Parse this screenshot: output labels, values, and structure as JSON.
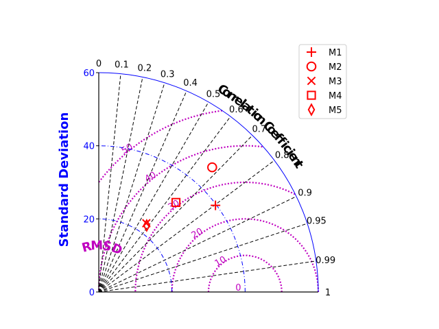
{
  "chart_data": {
    "type": "taylor",
    "title": "",
    "ylabel": "Standard Deviation",
    "corr_label": "Correlation Coefficient",
    "rms_label": "RMSD",
    "sd_max": 60,
    "sd_ticks": [
      0,
      20,
      40,
      60
    ],
    "sd_tick_labels": [
      "0",
      "20",
      "40",
      "60"
    ],
    "corr_ticks": [
      0,
      0.1,
      0.2,
      0.3,
      0.4,
      0.5,
      0.6,
      0.7,
      0.8,
      0.9,
      0.95,
      0.99,
      1
    ],
    "corr_tick_labels": [
      "0",
      "0.1",
      "0.2",
      "0.3",
      "0.4",
      "0.5",
      "0.6",
      "0.7",
      "0.8",
      "0.9",
      "0.95",
      "0.99",
      "1"
    ],
    "reference_sd": 40,
    "rms_contours": [
      10,
      20,
      30,
      40,
      50
    ],
    "rms_contour_labels": [
      "10",
      "20",
      "30",
      "40",
      "50"
    ],
    "rms_zero_label": "0",
    "colors": {
      "sd": "#0000ff",
      "rms": "#bf00bf",
      "markers": "#ff0000",
      "corr": "#000000"
    },
    "legend_position": "top-right",
    "series": [
      {
        "name": "M1",
        "marker": "plus",
        "x": 31.9,
        "y": 23.7
      },
      {
        "name": "M2",
        "marker": "circle",
        "x": 31.0,
        "y": 34.1
      },
      {
        "name": "M3",
        "marker": "x",
        "x": 13.0,
        "y": 18.8
      },
      {
        "name": "M4",
        "marker": "square",
        "x": 21.1,
        "y": 24.5
      },
      {
        "name": "M5",
        "marker": "diamond",
        "x": 13.1,
        "y": 18.2
      }
    ]
  }
}
